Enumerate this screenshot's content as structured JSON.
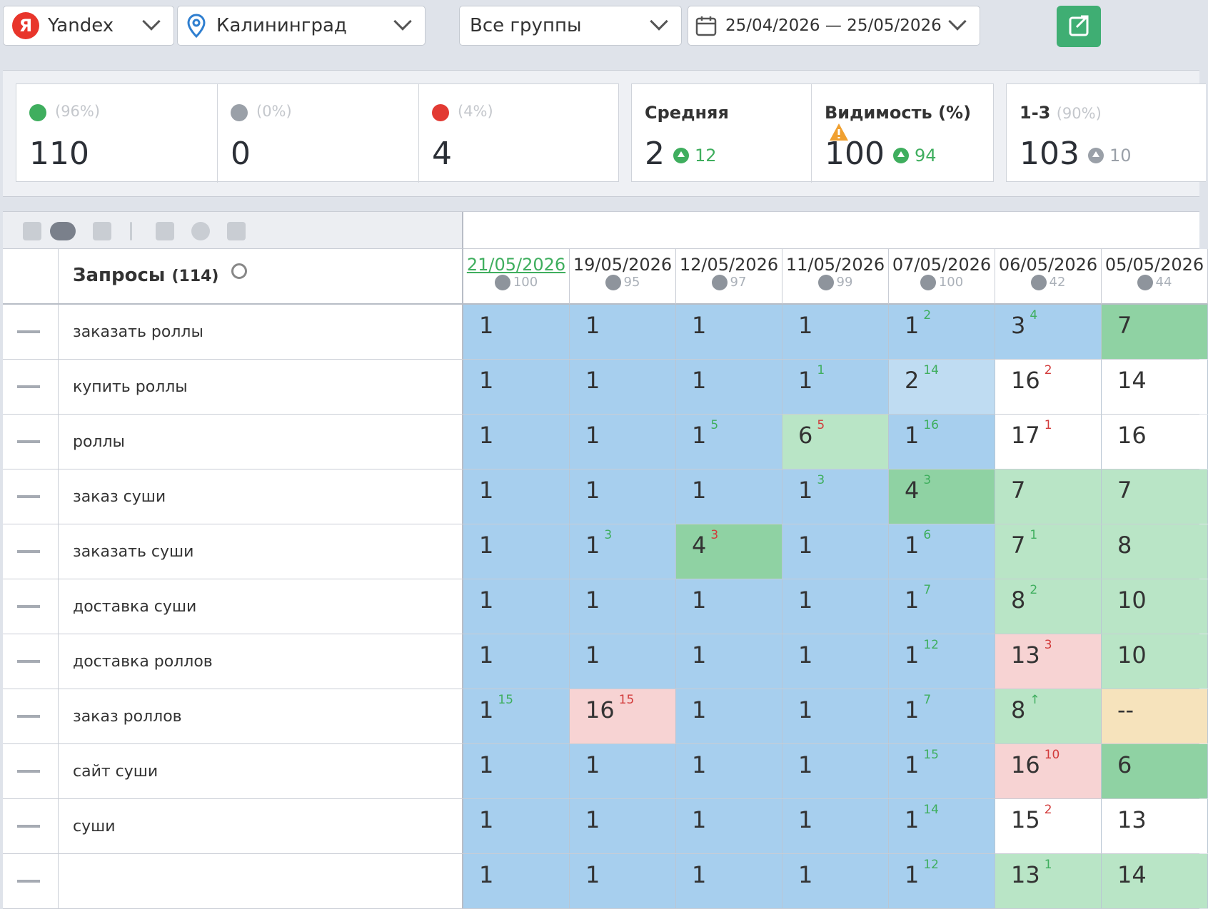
{
  "toolbar": {
    "engine": "Yandex",
    "engine_logo": "Я",
    "region": "Калининград",
    "group": "Все группы",
    "date_range": "25/04/2026 — 25/05/2026",
    "accent_color": "#3fae73"
  },
  "stats": {
    "up": {
      "pct": "(96%)",
      "value": "110"
    },
    "same": {
      "pct": "(0%)",
      "value": "0"
    },
    "down": {
      "pct": "(4%)",
      "value": "4"
    },
    "average": {
      "label": "Средняя",
      "value": "2",
      "delta": "12"
    },
    "visibility": {
      "label": "Видимость (%)",
      "value": "100",
      "delta": "94"
    },
    "top3": {
      "label": "1-3",
      "pct": "(90%)",
      "value": "103",
      "delta": "10"
    }
  },
  "table": {
    "queries_title": "Запросы",
    "queries_count": "(114)",
    "dates": [
      {
        "date": "21/05/2026",
        "vis": "100"
      },
      {
        "date": "19/05/2026",
        "vis": "95"
      },
      {
        "date": "12/05/2026",
        "vis": "97"
      },
      {
        "date": "11/05/2026",
        "vis": "99"
      },
      {
        "date": "07/05/2026",
        "vis": "100"
      },
      {
        "date": "06/05/2026",
        "vis": "42"
      },
      {
        "date": "05/05/2026",
        "vis": "44"
      }
    ],
    "rows": [
      {
        "q": "заказать роллы",
        "cells": [
          [
            "1",
            "",
            "",
            "blue"
          ],
          [
            "1",
            "",
            "",
            "blue"
          ],
          [
            "1",
            "",
            "",
            "blue"
          ],
          [
            "1",
            "",
            "",
            "blue"
          ],
          [
            "1",
            "2",
            "g",
            "blue"
          ],
          [
            "3",
            "4",
            "g",
            "blue"
          ],
          [
            "7",
            "",
            "",
            "green"
          ]
        ]
      },
      {
        "q": "купить роллы",
        "cells": [
          [
            "1",
            "",
            "",
            "blue"
          ],
          [
            "1",
            "",
            "",
            "blue"
          ],
          [
            "1",
            "",
            "",
            "blue"
          ],
          [
            "1",
            "1",
            "g",
            "blue"
          ],
          [
            "2",
            "14",
            "g",
            "lblue"
          ],
          [
            "16",
            "2",
            "r",
            "white"
          ],
          [
            "14",
            "",
            "",
            "white"
          ]
        ]
      },
      {
        "q": "роллы",
        "cells": [
          [
            "1",
            "",
            "",
            "blue"
          ],
          [
            "1",
            "",
            "",
            "blue"
          ],
          [
            "1",
            "5",
            "g",
            "blue"
          ],
          [
            "6",
            "5",
            "r",
            "lgreen"
          ],
          [
            "1",
            "16",
            "g",
            "blue"
          ],
          [
            "17",
            "1",
            "r",
            "white"
          ],
          [
            "16",
            "",
            "",
            "white"
          ]
        ]
      },
      {
        "q": "заказ суши",
        "cells": [
          [
            "1",
            "",
            "",
            "blue"
          ],
          [
            "1",
            "",
            "",
            "blue"
          ],
          [
            "1",
            "",
            "",
            "blue"
          ],
          [
            "1",
            "3",
            "g",
            "blue"
          ],
          [
            "4",
            "3",
            "g",
            "green"
          ],
          [
            "7",
            "",
            "",
            "lgreen"
          ],
          [
            "7",
            "",
            "",
            "lgreen"
          ]
        ]
      },
      {
        "q": "заказать суши",
        "cells": [
          [
            "1",
            "",
            "",
            "blue"
          ],
          [
            "1",
            "3",
            "g",
            "blue"
          ],
          [
            "4",
            "3",
            "r",
            "green"
          ],
          [
            "1",
            "",
            "",
            "blue"
          ],
          [
            "1",
            "6",
            "g",
            "blue"
          ],
          [
            "7",
            "1",
            "g",
            "lgreen"
          ],
          [
            "8",
            "",
            "",
            "lgreen"
          ]
        ]
      },
      {
        "q": "доставка суши",
        "cells": [
          [
            "1",
            "",
            "",
            "blue"
          ],
          [
            "1",
            "",
            "",
            "blue"
          ],
          [
            "1",
            "",
            "",
            "blue"
          ],
          [
            "1",
            "",
            "",
            "blue"
          ],
          [
            "1",
            "7",
            "g",
            "blue"
          ],
          [
            "8",
            "2",
            "g",
            "lgreen"
          ],
          [
            "10",
            "",
            "",
            "lgreen"
          ]
        ]
      },
      {
        "q": "доставка роллов",
        "cells": [
          [
            "1",
            "",
            "",
            "blue"
          ],
          [
            "1",
            "",
            "",
            "blue"
          ],
          [
            "1",
            "",
            "",
            "blue"
          ],
          [
            "1",
            "",
            "",
            "blue"
          ],
          [
            "1",
            "12",
            "g",
            "blue"
          ],
          [
            "13",
            "3",
            "r",
            "red"
          ],
          [
            "10",
            "",
            "",
            "lgreen"
          ]
        ]
      },
      {
        "q": "заказ роллов",
        "cells": [
          [
            "1",
            "15",
            "g",
            "blue"
          ],
          [
            "16",
            "15",
            "r",
            "red"
          ],
          [
            "1",
            "",
            "",
            "blue"
          ],
          [
            "1",
            "",
            "",
            "blue"
          ],
          [
            "1",
            "7",
            "g",
            "blue"
          ],
          [
            "8",
            "↑",
            "g",
            "lgreen"
          ],
          [
            "--",
            "",
            "",
            "yellow"
          ]
        ]
      },
      {
        "q": "сайт суши",
        "cells": [
          [
            "1",
            "",
            "",
            "blue"
          ],
          [
            "1",
            "",
            "",
            "blue"
          ],
          [
            "1",
            "",
            "",
            "blue"
          ],
          [
            "1",
            "",
            "",
            "blue"
          ],
          [
            "1",
            "15",
            "g",
            "blue"
          ],
          [
            "16",
            "10",
            "r",
            "red"
          ],
          [
            "6",
            "",
            "",
            "green"
          ]
        ]
      },
      {
        "q": "суши",
        "cells": [
          [
            "1",
            "",
            "",
            "blue"
          ],
          [
            "1",
            "",
            "",
            "blue"
          ],
          [
            "1",
            "",
            "",
            "blue"
          ],
          [
            "1",
            "",
            "",
            "blue"
          ],
          [
            "1",
            "14",
            "g",
            "blue"
          ],
          [
            "15",
            "2",
            "r",
            "white"
          ],
          [
            "13",
            "",
            "",
            "white"
          ]
        ]
      },
      {
        "q": "",
        "cells": [
          [
            "1",
            "",
            "",
            "blue"
          ],
          [
            "1",
            "",
            "",
            "blue"
          ],
          [
            "1",
            "",
            "",
            "blue"
          ],
          [
            "1",
            "",
            "",
            "blue"
          ],
          [
            "1",
            "12",
            "g",
            "blue"
          ],
          [
            "13",
            "1",
            "g",
            "lgreen"
          ],
          [
            "14",
            "",
            "",
            "lgreen"
          ]
        ]
      }
    ]
  }
}
